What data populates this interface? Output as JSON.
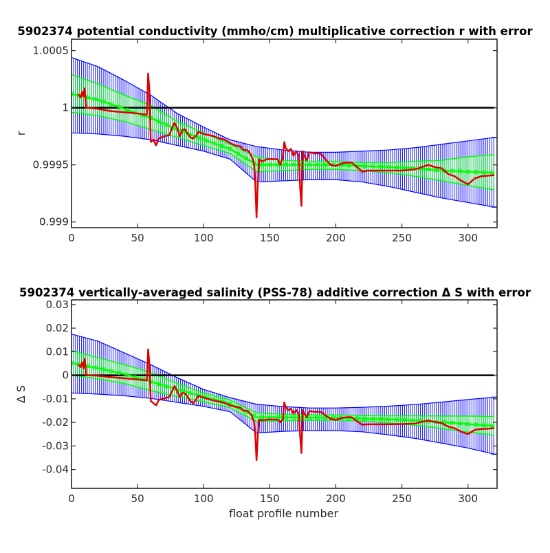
{
  "chart_data": [
    {
      "type": "line",
      "title": "5902374 potential conductivity (mmho/cm) multiplicative correction r with error",
      "xlabel": "",
      "ylabel": "r",
      "xlim": [
        0,
        322
      ],
      "ylim": [
        0.99895,
        1.0006
      ],
      "xticks": [
        0,
        50,
        100,
        150,
        200,
        250,
        300
      ],
      "yticks": [
        0.999,
        0.9995,
        1,
        1.0005
      ],
      "ytick_labels": [
        "0.999",
        "0.9995",
        "1",
        "1.0005"
      ],
      "reference_line": 1,
      "grid": false,
      "series": [
        {
          "role": "fit error band (2x)",
          "color": "#0000ff",
          "x": [
            0,
            20,
            40,
            60,
            80,
            100,
            120,
            140,
            160,
            180,
            200,
            220,
            240,
            260,
            280,
            300,
            320
          ],
          "lower": [
            0.99978,
            0.99977,
            0.99975,
            0.99972,
            0.99967,
            0.99962,
            0.99955,
            0.99935,
            0.99936,
            0.99937,
            0.99937,
            0.99935,
            0.99931,
            0.99926,
            0.99921,
            0.99917,
            0.99913
          ],
          "upper": [
            1.00044,
            1.00036,
            1.00024,
            1.00011,
            0.99995,
            0.99983,
            0.99972,
            0.99966,
            0.99963,
            0.99961,
            0.99961,
            0.99962,
            0.99963,
            0.99965,
            0.99968,
            0.99971,
            0.99974
          ]
        },
        {
          "role": "fit error band (1x)",
          "color": "#00ff00",
          "x": [
            0,
            20,
            40,
            60,
            80,
            100,
            120,
            140,
            160,
            180,
            200,
            220,
            240,
            260,
            280,
            300,
            320
          ],
          "lower": [
            0.99996,
            0.99993,
            0.99988,
            0.99981,
            0.99974,
            0.99967,
            0.9996,
            0.99944,
            0.99945,
            0.99946,
            0.99946,
            0.99945,
            0.99943,
            0.9994,
            0.99936,
            0.99932,
            0.99928
          ],
          "upper": [
            1.00029,
            1.00021,
            1.00011,
            1.00002,
            0.99988,
            0.99978,
            0.99968,
            0.99957,
            0.99954,
            0.99953,
            0.99953,
            0.99952,
            0.99952,
            0.99953,
            0.99954,
            0.99957,
            0.99959
          ]
        },
        {
          "role": "piecewise fit",
          "color": "#00ff00",
          "x": [
            0,
            20,
            40,
            60,
            80,
            100,
            120,
            140,
            160,
            180,
            200,
            220,
            240,
            260,
            280,
            300,
            320
          ],
          "y": [
            1.00012,
            1.00007,
            0.99999,
            0.99991,
            0.99981,
            0.99972,
            0.99964,
            0.9995,
            0.9995,
            0.9995,
            0.9995,
            0.99949,
            0.99948,
            0.99947,
            0.99945,
            0.99944,
            0.99943
          ]
        },
        {
          "role": "calculated correction",
          "color": "#e00000",
          "x": [
            5,
            7,
            8,
            9,
            10,
            11,
            12,
            20,
            30,
            40,
            50,
            56,
            57,
            58,
            59,
            60,
            62,
            64,
            66,
            70,
            74,
            76,
            78,
            80,
            82,
            84,
            86,
            88,
            90,
            92,
            94,
            96,
            100,
            104,
            108,
            112,
            116,
            120,
            124,
            128,
            130,
            132,
            134,
            136,
            138,
            139,
            140,
            141,
            142,
            144,
            148,
            152,
            156,
            158,
            160,
            161,
            162,
            164,
            166,
            168,
            170,
            172,
            173,
            174,
            175,
            176,
            178,
            180,
            184,
            188,
            190,
            192,
            196,
            200,
            204,
            208,
            212,
            216,
            220,
            224,
            230,
            240,
            250,
            260,
            265,
            270,
            275,
            280,
            285,
            290,
            295,
            300,
            305,
            310,
            320
          ],
          "y": [
            1.00012,
            1.00009,
            1.00014,
            1.0001,
            1.00017,
            1.0,
            1.0,
            0.99999,
            0.99997,
            0.99996,
            0.99995,
            0.99994,
            0.99994,
            1.0003,
            1.00015,
            0.9997,
            0.99972,
            0.99967,
            0.99973,
            0.99975,
            0.99976,
            0.99982,
            0.99987,
            0.99982,
            0.99975,
            0.99981,
            0.99981,
            0.99977,
            0.99974,
            0.99973,
            0.99975,
            0.99979,
            0.99977,
            0.99976,
            0.99975,
            0.99973,
            0.99972,
            0.99969,
            0.99967,
            0.99966,
            0.99963,
            0.99963,
            0.99962,
            0.99958,
            0.99952,
            0.99935,
            0.99904,
            0.99935,
            0.99955,
            0.99953,
            0.99955,
            0.99955,
            0.99955,
            0.9995,
            0.99957,
            0.9997,
            0.99965,
            0.99962,
            0.99964,
            0.99958,
            0.99962,
            0.99958,
            0.9993,
            0.99914,
            0.99962,
            0.99958,
            0.99954,
            0.99961,
            0.9996,
            0.9996,
            0.99958,
            0.99955,
            0.9995,
            0.99949,
            0.99951,
            0.99952,
            0.99952,
            0.99948,
            0.99944,
            0.99945,
            0.99945,
            0.99945,
            0.99945,
            0.99946,
            0.99948,
            0.9995,
            0.99948,
            0.99947,
            0.99942,
            0.9994,
            0.99936,
            0.99933,
            0.99938,
            0.9994,
            0.99941
          ]
        }
      ]
    },
    {
      "type": "line",
      "title": "5902374 vertically-averaged salinity (PSS-78) additive correction Δ S with error",
      "xlabel": "float profile number",
      "ylabel": "Δ S",
      "xlim": [
        0,
        322
      ],
      "ylim": [
        -0.048,
        0.032
      ],
      "xticks": [
        0,
        50,
        100,
        150,
        200,
        250,
        300
      ],
      "yticks": [
        -0.04,
        -0.03,
        -0.02,
        -0.01,
        0,
        0.01,
        0.02,
        0.03
      ],
      "ytick_labels": [
        "-0.04",
        "-0.03",
        "-0.02",
        "-0.01",
        "0",
        "0.01",
        "0.02",
        "0.03"
      ],
      "reference_line": 0,
      "grid": false,
      "series": [
        {
          "role": "fit error band (2x)",
          "color": "#0000ff",
          "x": [
            0,
            20,
            40,
            60,
            80,
            100,
            120,
            140,
            160,
            180,
            200,
            220,
            240,
            260,
            280,
            300,
            320
          ],
          "lower": [
            -0.0075,
            -0.008,
            -0.0087,
            -0.0098,
            -0.0115,
            -0.0132,
            -0.0155,
            -0.0245,
            -0.0238,
            -0.0235,
            -0.0235,
            -0.024,
            -0.0253,
            -0.0268,
            -0.0288,
            -0.0309,
            -0.0335
          ],
          "upper": [
            0.0175,
            0.0145,
            0.0095,
            0.0045,
            -0.001,
            -0.006,
            -0.0095,
            -0.0123,
            -0.0133,
            -0.0139,
            -0.0139,
            -0.0136,
            -0.0131,
            -0.0124,
            -0.0114,
            -0.0103,
            -0.0093
          ]
        },
        {
          "role": "fit error band (1x)",
          "color": "#00ff00",
          "x": [
            0,
            20,
            40,
            60,
            80,
            100,
            120,
            140,
            160,
            180,
            200,
            220,
            240,
            260,
            280,
            300,
            320
          ],
          "lower": [
            0.0,
            -0.0015,
            -0.0035,
            -0.0065,
            -0.009,
            -0.0112,
            -0.0137,
            -0.0197,
            -0.0193,
            -0.0191,
            -0.0191,
            -0.0194,
            -0.0202,
            -0.0212,
            -0.0226,
            -0.0241,
            -0.0255
          ],
          "upper": [
            0.0105,
            0.0075,
            0.0045,
            0.0012,
            -0.0035,
            -0.0075,
            -0.0105,
            -0.016,
            -0.0165,
            -0.0168,
            -0.0168,
            -0.0171,
            -0.0172,
            -0.0172,
            -0.0173,
            -0.0173,
            -0.0175
          ]
        },
        {
          "role": "piecewise fit",
          "color": "#00ff00",
          "x": [
            0,
            20,
            40,
            60,
            80,
            100,
            120,
            140,
            160,
            180,
            200,
            220,
            240,
            260,
            280,
            300,
            320
          ],
          "y": [
            0.0052,
            0.003,
            0.0005,
            -0.0027,
            -0.006,
            -0.009,
            -0.012,
            -0.0178,
            -0.0179,
            -0.018,
            -0.018,
            -0.0183,
            -0.0187,
            -0.0192,
            -0.0199,
            -0.0207,
            -0.0215
          ]
        },
        {
          "role": "calculated correction",
          "color": "#e00000",
          "x": [
            5,
            7,
            8,
            9,
            10,
            11,
            12,
            20,
            30,
            40,
            50,
            56,
            57,
            58,
            59,
            60,
            62,
            64,
            66,
            70,
            74,
            76,
            78,
            80,
            82,
            84,
            86,
            88,
            90,
            92,
            94,
            96,
            100,
            104,
            108,
            112,
            116,
            120,
            124,
            128,
            130,
            132,
            134,
            136,
            138,
            139,
            140,
            141,
            142,
            144,
            148,
            152,
            156,
            158,
            160,
            161,
            162,
            164,
            166,
            168,
            170,
            172,
            173,
            174,
            175,
            176,
            178,
            180,
            184,
            188,
            190,
            192,
            196,
            200,
            204,
            208,
            212,
            216,
            220,
            224,
            230,
            240,
            250,
            260,
            265,
            270,
            275,
            280,
            285,
            290,
            295,
            300,
            305,
            310,
            320
          ],
          "y": [
            0.0045,
            0.0035,
            0.0055,
            0.003,
            0.007,
            0.0,
            0.0,
            -0.0002,
            -0.0008,
            -0.0013,
            -0.0018,
            -0.0021,
            -0.0022,
            0.011,
            0.0042,
            -0.011,
            -0.0118,
            -0.0128,
            -0.0105,
            -0.0098,
            -0.0092,
            -0.0068,
            -0.0045,
            -0.0068,
            -0.0092,
            -0.0075,
            -0.0078,
            -0.0092,
            -0.011,
            -0.0118,
            -0.0105,
            -0.0088,
            -0.0095,
            -0.0102,
            -0.0108,
            -0.0112,
            -0.0118,
            -0.0128,
            -0.0134,
            -0.0138,
            -0.015,
            -0.015,
            -0.0154,
            -0.0168,
            -0.0195,
            -0.025,
            -0.036,
            -0.025,
            -0.0188,
            -0.0192,
            -0.0188,
            -0.0188,
            -0.0188,
            -0.02,
            -0.0185,
            -0.0115,
            -0.0135,
            -0.0148,
            -0.0142,
            -0.0162,
            -0.0148,
            -0.0162,
            -0.0258,
            -0.033,
            -0.0148,
            -0.0162,
            -0.0178,
            -0.0152,
            -0.0155,
            -0.0155,
            -0.016,
            -0.017,
            -0.0185,
            -0.019,
            -0.0182,
            -0.0178,
            -0.0178,
            -0.0195,
            -0.021,
            -0.0208,
            -0.0208,
            -0.0208,
            -0.0207,
            -0.0205,
            -0.0198,
            -0.0192,
            -0.0198,
            -0.0203,
            -0.0218,
            -0.0225,
            -0.024,
            -0.025,
            -0.0232,
            -0.0228,
            -0.0225
          ]
        }
      ]
    }
  ]
}
